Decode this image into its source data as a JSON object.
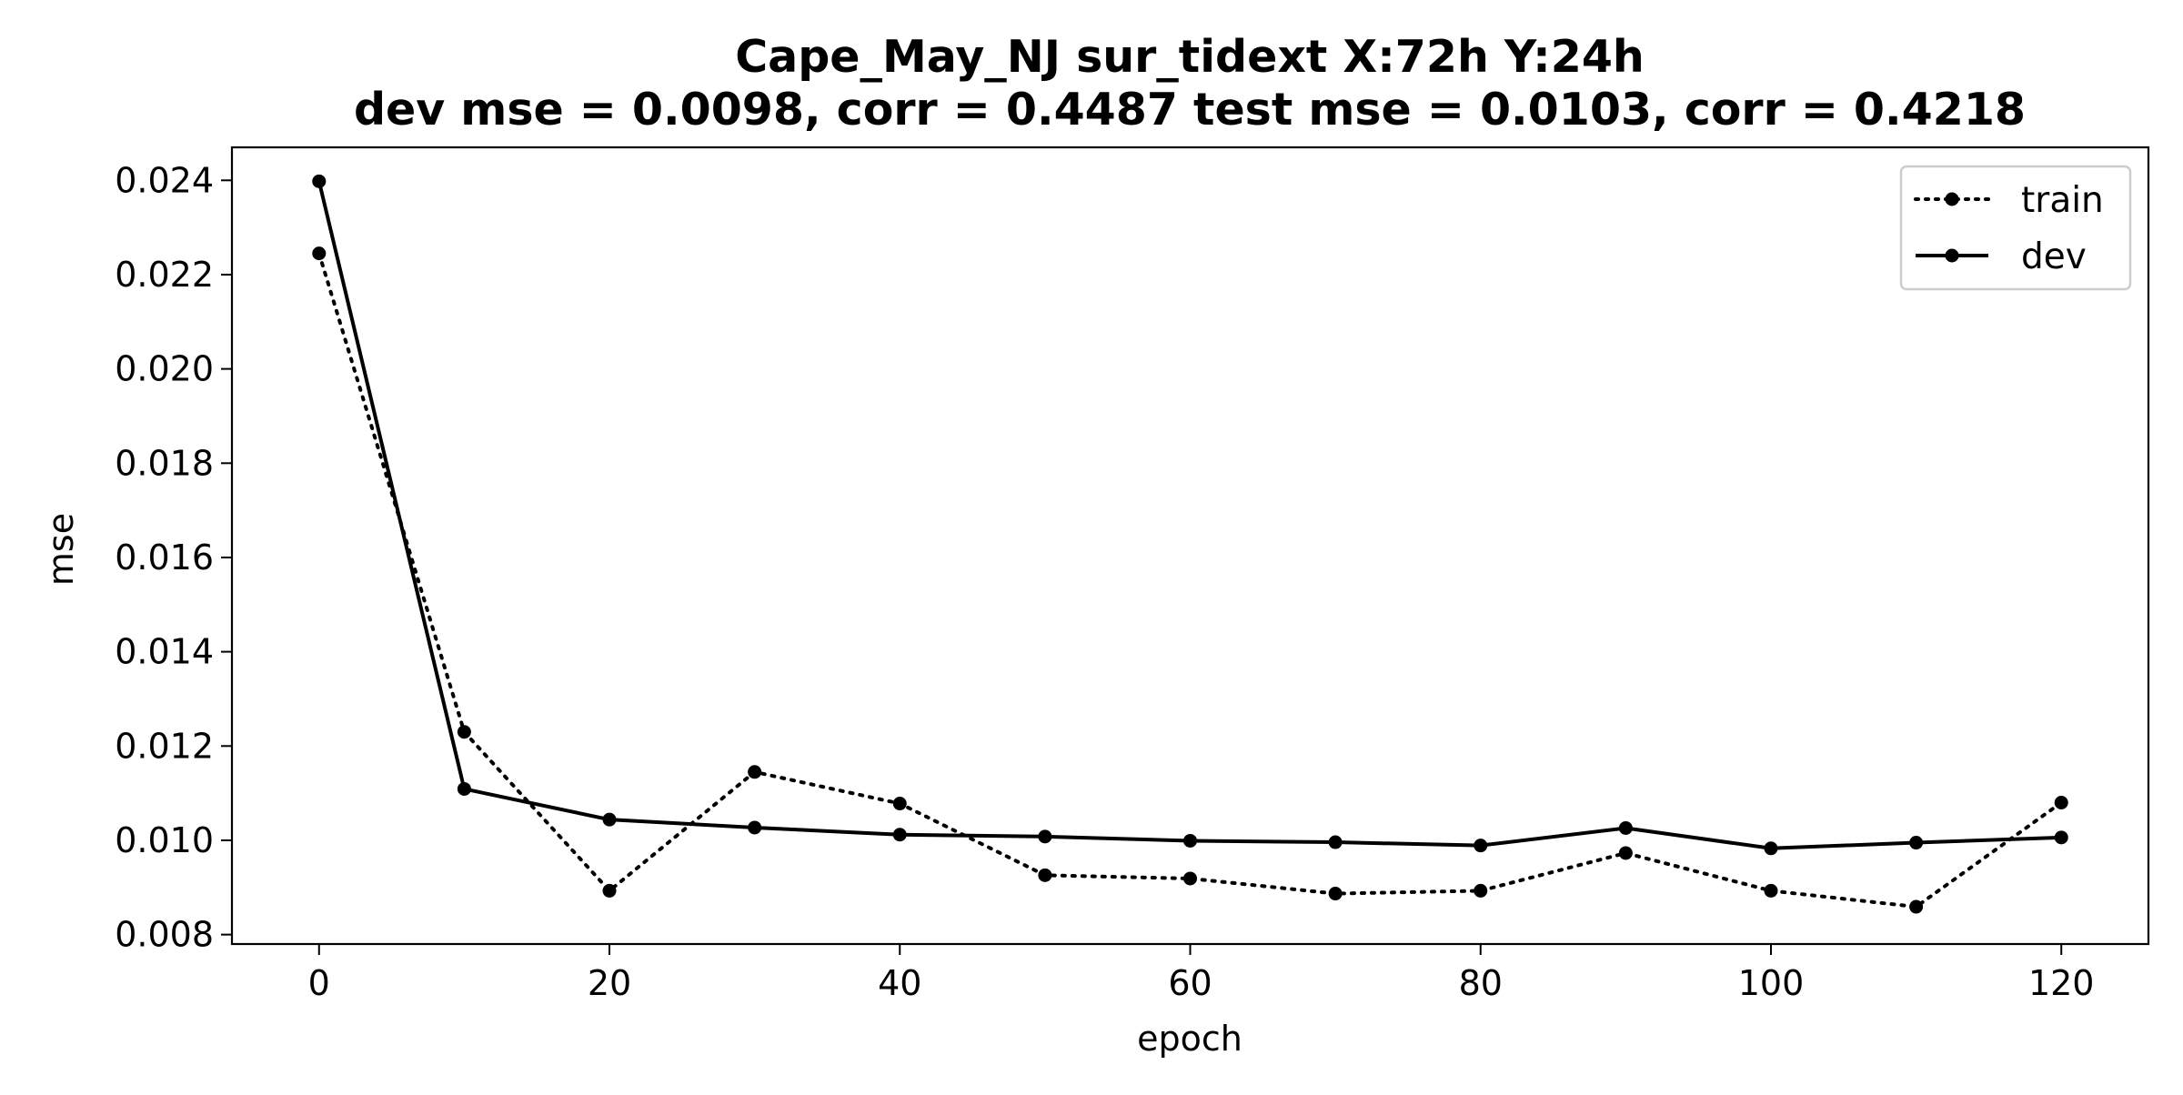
{
  "chart_data": {
    "type": "line",
    "title": "Cape_May_NJ   sur_tidext   X:72h   Y:24h",
    "subtitle": "dev mse = 0.0098, corr = 0.4487   test mse = 0.0103, corr = 0.4218",
    "xlabel": "epoch",
    "ylabel": "mse",
    "x": [
      0,
      10,
      20,
      30,
      40,
      50,
      60,
      70,
      80,
      90,
      100,
      110,
      120
    ],
    "xlim": [
      -6,
      126
    ],
    "ylim": [
      0.0078,
      0.0247
    ],
    "xticks": [
      0,
      20,
      40,
      60,
      80,
      100,
      120
    ],
    "xtick_labels": [
      "0",
      "20",
      "40",
      "60",
      "80",
      "100",
      "120"
    ],
    "yticks": [
      0.008,
      0.01,
      0.012,
      0.014,
      0.016,
      0.018,
      0.02,
      0.022,
      0.024
    ],
    "ytick_labels": [
      "0.008",
      "0.010",
      "0.012",
      "0.014",
      "0.016",
      "0.018",
      "0.020",
      "0.022",
      "0.024"
    ],
    "grid": false,
    "legend_position": "top-right",
    "series": [
      {
        "name": "train",
        "style": "dotted",
        "color": "#000000",
        "values": [
          0.02245,
          0.0123,
          0.00893,
          0.01145,
          0.01078,
          0.00926,
          0.00919,
          0.00887,
          0.00893,
          0.00973,
          0.00893,
          0.00859,
          0.0108
        ]
      },
      {
        "name": "dev",
        "style": "solid",
        "color": "#000000",
        "values": [
          0.02398,
          0.01109,
          0.01044,
          0.01027,
          0.01012,
          0.01008,
          0.00999,
          0.00996,
          0.00989,
          0.01026,
          0.00983,
          0.00995,
          0.01006
        ]
      }
    ]
  }
}
